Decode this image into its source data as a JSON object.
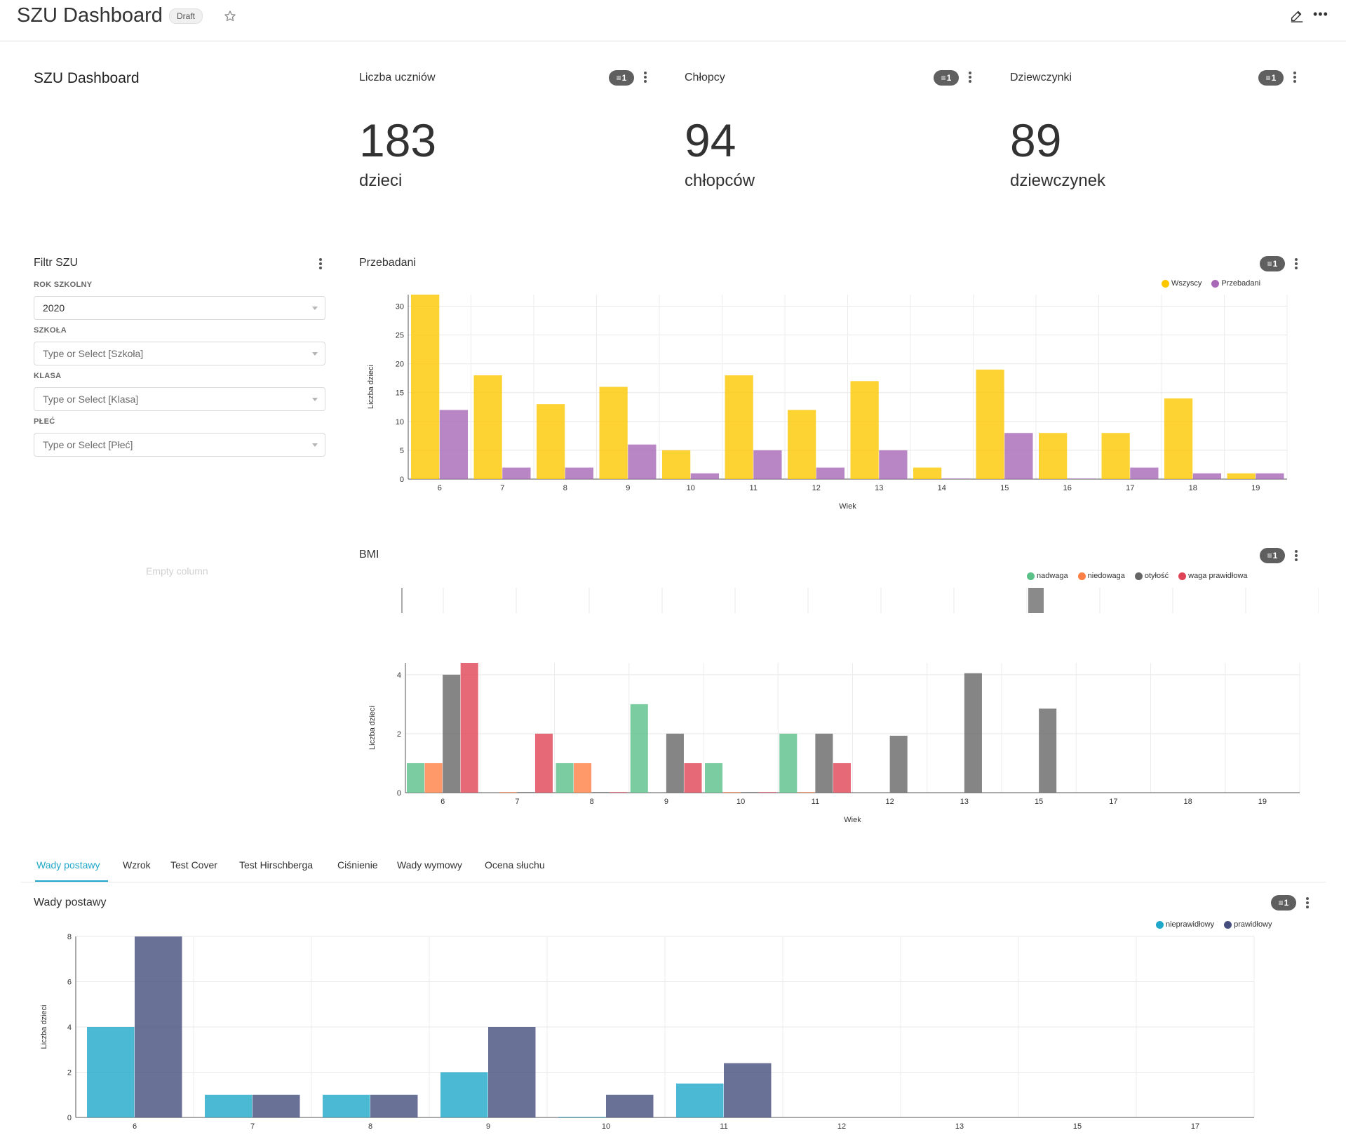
{
  "app": {
    "title": "SZU Dashboard",
    "status_badge": "Draft"
  },
  "header_block": {
    "text": "SZU Dashboard"
  },
  "big_numbers": [
    {
      "title": "Liczba uczniów",
      "value": "183",
      "subheader": "dzieci",
      "filter_count": "1"
    },
    {
      "title": "Chłopcy",
      "value": "94",
      "subheader": "chłopców",
      "filter_count": "1"
    },
    {
      "title": "Dziewczynki",
      "value": "89",
      "subheader": "dziewczynek",
      "filter_count": "1"
    }
  ],
  "filter": {
    "title": "Filtr SZU",
    "fields": [
      {
        "label": "ROK SZKOLNY",
        "value": "2020",
        "placeholder": ""
      },
      {
        "label": "SZKOŁA",
        "value": "",
        "placeholder": "Type or Select [Szkoła]"
      },
      {
        "label": "KLASA",
        "value": "",
        "placeholder": "Type or Select [Klasa]"
      },
      {
        "label": "PŁEĆ",
        "value": "",
        "placeholder": "Type or Select [Płeć]"
      }
    ]
  },
  "empty_column": "Empty column",
  "tabs": [
    {
      "label": "Wady postawy",
      "active": true
    },
    {
      "label": "Wzrok",
      "active": false
    },
    {
      "label": "Test Cover",
      "active": false
    },
    {
      "label": "Test Hirschberga",
      "active": false
    },
    {
      "label": "Ciśnienie",
      "active": false
    },
    {
      "label": "Wady wymowy",
      "active": false
    },
    {
      "label": "Ocena słuchu",
      "active": false
    }
  ],
  "chart_data": [
    {
      "id": "przebadani",
      "type": "bar",
      "title": "Przebadani",
      "filter_count": "1",
      "xlabel": "Wiek",
      "ylabel": "Liczba dzieci",
      "ylim": [
        0,
        32
      ],
      "yticks": [
        0,
        5,
        10,
        15,
        20,
        25,
        30
      ],
      "categories": [
        "6",
        "7",
        "8",
        "9",
        "10",
        "11",
        "12",
        "13",
        "14",
        "15",
        "16",
        "17",
        "18",
        "19"
      ],
      "series": [
        {
          "name": "Wszyscy",
          "color": "#fcc700",
          "values": [
            32,
            18,
            13,
            16,
            5,
            18,
            12,
            17,
            2,
            19,
            8,
            8,
            14,
            1
          ]
        },
        {
          "name": "Przebadani",
          "color": "#a868b7",
          "values": [
            12,
            2,
            2,
            6,
            1,
            5,
            2,
            5,
            0.1,
            8,
            0.1,
            2,
            1,
            1
          ]
        }
      ],
      "grid": true,
      "legend": "top-right"
    },
    {
      "id": "bmi",
      "type": "bar",
      "title": "BMI",
      "filter_count": "1",
      "xlabel": "Wiek",
      "ylabel": "Liczba dzieci",
      "ylim": [
        0,
        4.4
      ],
      "yticks": [
        0,
        2,
        4
      ],
      "categories": [
        "6",
        "7",
        "8",
        "9",
        "10",
        "11",
        "12",
        "13",
        "15",
        "17",
        "18",
        "19"
      ],
      "series": [
        {
          "name": "nadwaga",
          "color": "#5ac189",
          "values": [
            1,
            0,
            1,
            3,
            1,
            2,
            0,
            0,
            0,
            0,
            0,
            0
          ]
        },
        {
          "name": "niedowaga",
          "color": "#ff7f44",
          "values": [
            1,
            0.02,
            1,
            0,
            0.02,
            0.02,
            0,
            0,
            0,
            0,
            0,
            0
          ]
        },
        {
          "name": "otyłość",
          "color": "#666666",
          "values": [
            4,
            0.02,
            0.02,
            2,
            0.02,
            2,
            1.93,
            4.05,
            2.85,
            0,
            0,
            0
          ]
        },
        {
          "name": "waga prawidłowa",
          "color": "#e04355",
          "values": [
            4.4,
            2,
            0.02,
            1,
            0.02,
            1,
            0,
            0,
            0,
            0,
            0,
            0
          ]
        }
      ],
      "grid": true,
      "legend": "top-right"
    },
    {
      "id": "wady_postawy",
      "type": "bar",
      "title": "Wady postawy",
      "filter_count": "1",
      "xlabel": "",
      "ylabel": "Liczba dzieci",
      "ylim": [
        0,
        8
      ],
      "yticks": [
        0,
        2,
        4,
        6,
        8
      ],
      "categories": [
        "6",
        "7",
        "8",
        "9",
        "10",
        "11",
        "12",
        "13",
        "15",
        "17"
      ],
      "series": [
        {
          "name": "nieprawidłowy",
          "color": "#1fa8c9",
          "values": [
            4,
            1,
            1,
            2,
            0.03,
            1.5,
            0,
            0,
            0,
            0
          ]
        },
        {
          "name": "prawidłowy",
          "color": "#454e7c",
          "values": [
            8,
            1,
            1,
            4,
            1,
            2.4,
            0,
            0,
            0,
            0
          ]
        }
      ],
      "grid": true,
      "legend": "top-right"
    }
  ]
}
